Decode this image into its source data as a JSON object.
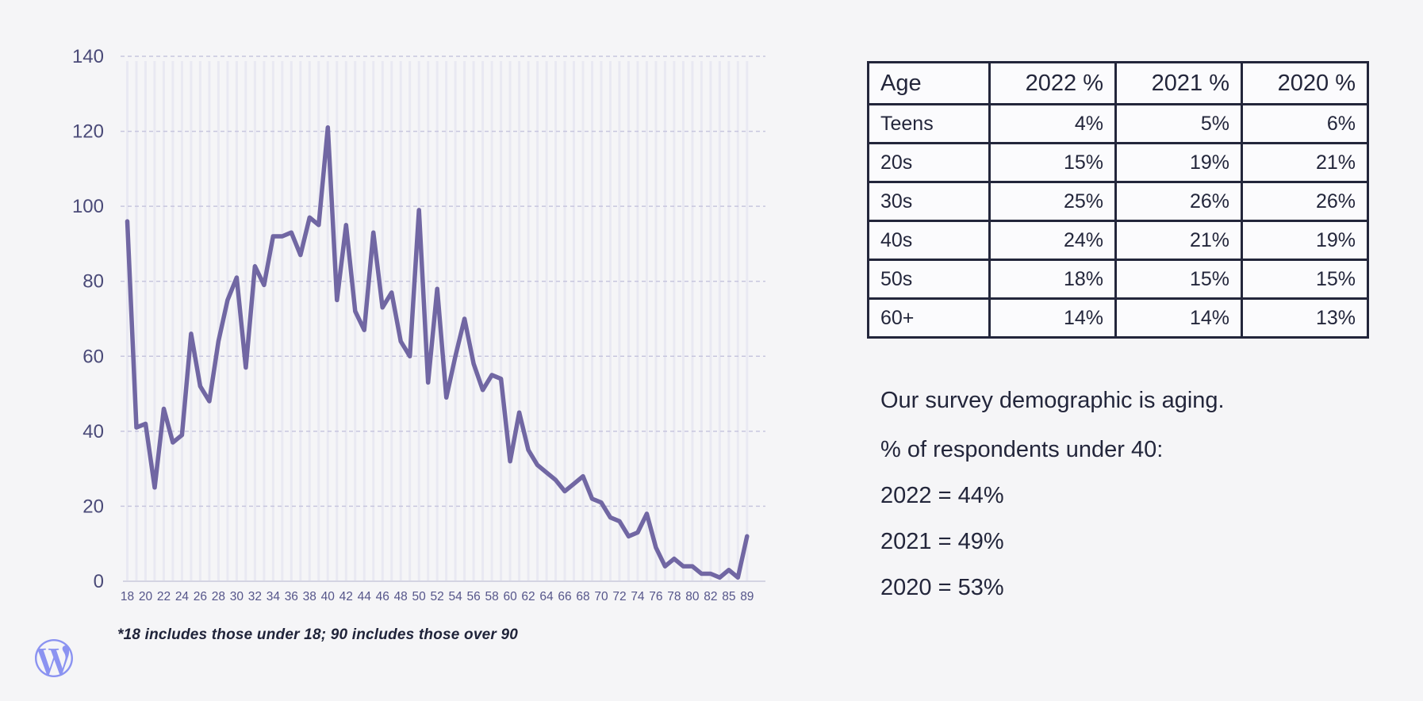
{
  "page": {
    "background": "#f5f5f7",
    "text_color": "#23263b"
  },
  "chart_data": {
    "type": "line",
    "title": "",
    "xlabel": "",
    "ylabel": "",
    "x": [
      18,
      19,
      20,
      21,
      22,
      23,
      24,
      25,
      26,
      27,
      28,
      29,
      30,
      31,
      32,
      33,
      34,
      35,
      36,
      37,
      38,
      39,
      40,
      41,
      42,
      43,
      44,
      45,
      46,
      47,
      48,
      49,
      50,
      51,
      52,
      53,
      54,
      55,
      56,
      57,
      58,
      59,
      60,
      61,
      62,
      63,
      64,
      65,
      66,
      67,
      68,
      69,
      70,
      71,
      72,
      73,
      74,
      75,
      76,
      77,
      78,
      79,
      80,
      81,
      82,
      83,
      85,
      87,
      89
    ],
    "values": [
      96,
      41,
      42,
      25,
      46,
      37,
      39,
      66,
      52,
      48,
      64,
      75,
      81,
      57,
      84,
      79,
      92,
      92,
      93,
      87,
      97,
      95,
      121,
      75,
      95,
      72,
      67,
      93,
      73,
      77,
      64,
      60,
      99,
      53,
      78,
      49,
      60,
      70,
      58,
      51,
      55,
      54,
      32,
      45,
      35,
      31,
      29,
      27,
      24,
      26,
      28,
      22,
      21,
      17,
      16,
      12,
      13,
      18,
      9,
      4,
      6,
      4,
      4,
      2,
      2,
      1,
      3,
      1,
      12
    ],
    "x_tick_labels": [
      "18",
      "20",
      "22",
      "24",
      "26",
      "28",
      "30",
      "32",
      "34",
      "36",
      "38",
      "40",
      "42",
      "44",
      "46",
      "48",
      "50",
      "52",
      "54",
      "56",
      "58",
      "60",
      "62",
      "64",
      "66",
      "68",
      "70",
      "72",
      "74",
      "76",
      "78",
      "80",
      "82",
      "85",
      "89"
    ],
    "y_ticks": [
      0,
      20,
      40,
      60,
      80,
      100,
      120,
      140
    ],
    "ylim": [
      0,
      140
    ],
    "grid": {
      "horizontal": "dashed",
      "vertical": "per-category"
    },
    "legend": "none",
    "line_color": "#7167a3",
    "footnote": "*18 includes those under 18; 90 includes those over 90"
  },
  "table": {
    "headers": [
      "Age",
      "2022 %",
      "2021 %",
      "2020 %"
    ],
    "rows": [
      [
        "Teens",
        "4%",
        "5%",
        "6%"
      ],
      [
        "20s",
        "15%",
        "19%",
        "21%"
      ],
      [
        "30s",
        "25%",
        "26%",
        "26%"
      ],
      [
        "40s",
        "24%",
        "21%",
        "19%"
      ],
      [
        "50s",
        "18%",
        "15%",
        "15%"
      ],
      [
        "60+",
        "14%",
        "14%",
        "13%"
      ]
    ]
  },
  "notes": {
    "lines": [
      "Our survey demographic is aging.",
      "% of respondents under 40:",
      "2022 = 44%",
      "2021 = 49%",
      "2020 = 53%"
    ]
  },
  "logo": {
    "icon": "wordpress-logo",
    "color": "#8b93f1"
  }
}
